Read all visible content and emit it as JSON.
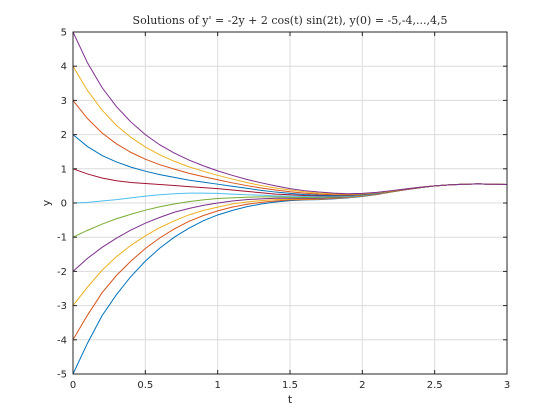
{
  "chart_data": {
    "type": "line",
    "title": "Solutions of y' = -2y + 2 cos(t) sin(2t), y(0) = -5,-4,...,4,5",
    "xlabel": "t",
    "ylabel": "y",
    "xlim": [
      0,
      3
    ],
    "ylim": [
      -5,
      5
    ],
    "xticks": [
      0,
      0.5,
      1,
      1.5,
      2,
      2.5,
      3
    ],
    "xtick_labels": [
      "0",
      "0.5",
      "1",
      "1.5",
      "2",
      "2.5",
      "3"
    ],
    "yticks": [
      -5,
      -4,
      -3,
      -2,
      -1,
      0,
      1,
      2,
      3,
      4,
      5
    ],
    "ytick_labels": [
      "-5",
      "-4",
      "-3",
      "-2",
      "-1",
      "0",
      "1",
      "2",
      "3",
      "4",
      "5"
    ],
    "grid": true,
    "x": [
      0,
      0.1,
      0.2,
      0.3,
      0.4,
      0.5,
      0.6,
      0.7,
      0.8,
      0.9,
      1.0,
      1.1,
      1.2,
      1.3,
      1.4,
      1.5,
      1.6,
      1.7,
      1.8,
      1.9,
      2.0,
      2.1,
      2.2,
      2.3,
      2.4,
      2.5,
      2.6,
      2.7,
      2.8,
      2.9,
      3.0
    ],
    "series": [
      {
        "initial": -5,
        "color": "#0072bd",
        "values": [
          -5,
          -4.1,
          -3.3,
          -2.68,
          -2.15,
          -1.7,
          -1.32,
          -1.0,
          -0.74,
          -0.52,
          -0.35,
          -0.22,
          -0.11,
          -0.03,
          0.03,
          0.07,
          0.09,
          0.1,
          0.12,
          0.15,
          0.19,
          0.25,
          0.32,
          0.39,
          0.45,
          0.5,
          0.53,
          0.55,
          0.56,
          0.55,
          0.54
        ]
      },
      {
        "initial": -4,
        "color": "#d95319",
        "values": [
          -4,
          -3.28,
          -2.63,
          -2.12,
          -1.7,
          -1.33,
          -1.02,
          -0.76,
          -0.54,
          -0.37,
          -0.23,
          -0.12,
          -0.04,
          0.02,
          0.06,
          0.09,
          0.1,
          0.11,
          0.13,
          0.16,
          0.2,
          0.25,
          0.32,
          0.39,
          0.45,
          0.5,
          0.53,
          0.55,
          0.56,
          0.55,
          0.54
        ]
      },
      {
        "initial": -3,
        "color": "#edb120",
        "values": [
          -3,
          -2.46,
          -1.97,
          -1.57,
          -1.24,
          -0.96,
          -0.72,
          -0.52,
          -0.35,
          -0.22,
          -0.12,
          -0.03,
          0.03,
          0.07,
          0.1,
          0.11,
          0.12,
          0.12,
          0.14,
          0.17,
          0.21,
          0.26,
          0.32,
          0.39,
          0.45,
          0.5,
          0.53,
          0.55,
          0.56,
          0.55,
          0.54
        ]
      },
      {
        "initial": -2,
        "color": "#7e2f8e",
        "values": [
          -2,
          -1.62,
          -1.3,
          -1.03,
          -0.79,
          -0.59,
          -0.42,
          -0.27,
          -0.16,
          -0.07,
          0.0,
          0.06,
          0.1,
          0.12,
          0.14,
          0.14,
          0.14,
          0.14,
          0.15,
          0.18,
          0.22,
          0.26,
          0.33,
          0.39,
          0.45,
          0.5,
          0.53,
          0.55,
          0.56,
          0.55,
          0.54
        ]
      },
      {
        "initial": -1,
        "color": "#77ac30",
        "values": [
          -1,
          -0.8,
          -0.62,
          -0.46,
          -0.33,
          -0.21,
          -0.11,
          -0.03,
          0.04,
          0.09,
          0.13,
          0.15,
          0.17,
          0.18,
          0.18,
          0.17,
          0.16,
          0.16,
          0.17,
          0.19,
          0.22,
          0.27,
          0.33,
          0.4,
          0.45,
          0.5,
          0.53,
          0.55,
          0.56,
          0.55,
          0.54
        ]
      },
      {
        "initial": 0,
        "color": "#4dbeee",
        "values": [
          0,
          0.02,
          0.06,
          0.1,
          0.15,
          0.2,
          0.24,
          0.27,
          0.29,
          0.29,
          0.28,
          0.26,
          0.24,
          0.23,
          0.21,
          0.2,
          0.19,
          0.18,
          0.19,
          0.2,
          0.23,
          0.28,
          0.34,
          0.4,
          0.45,
          0.5,
          0.53,
          0.55,
          0.56,
          0.55,
          0.54
        ]
      },
      {
        "initial": 1,
        "color": "#a2142f",
        "values": [
          1,
          0.85,
          0.73,
          0.65,
          0.6,
          0.57,
          0.54,
          0.51,
          0.48,
          0.45,
          0.42,
          0.38,
          0.34,
          0.3,
          0.26,
          0.24,
          0.22,
          0.21,
          0.21,
          0.22,
          0.24,
          0.29,
          0.34,
          0.4,
          0.45,
          0.5,
          0.53,
          0.55,
          0.56,
          0.55,
          0.54
        ]
      },
      {
        "initial": 2,
        "color": "#0072bd",
        "values": [
          2,
          1.65,
          1.39,
          1.2,
          1.05,
          0.93,
          0.83,
          0.75,
          0.67,
          0.61,
          0.55,
          0.49,
          0.43,
          0.37,
          0.32,
          0.28,
          0.25,
          0.23,
          0.22,
          0.23,
          0.25,
          0.29,
          0.35,
          0.41,
          0.46,
          0.5,
          0.53,
          0.55,
          0.56,
          0.55,
          0.54
        ]
      },
      {
        "initial": 3,
        "color": "#d95319",
        "values": [
          3,
          2.47,
          2.05,
          1.73,
          1.48,
          1.28,
          1.12,
          0.99,
          0.87,
          0.77,
          0.68,
          0.59,
          0.51,
          0.44,
          0.38,
          0.33,
          0.29,
          0.26,
          0.24,
          0.24,
          0.26,
          0.3,
          0.35,
          0.41,
          0.46,
          0.5,
          0.53,
          0.55,
          0.56,
          0.55,
          0.54
        ]
      },
      {
        "initial": 4,
        "color": "#edb120",
        "values": [
          4,
          3.29,
          2.72,
          2.27,
          1.92,
          1.64,
          1.41,
          1.22,
          1.06,
          0.93,
          0.81,
          0.7,
          0.6,
          0.51,
          0.44,
          0.38,
          0.33,
          0.29,
          0.27,
          0.26,
          0.27,
          0.3,
          0.35,
          0.41,
          0.46,
          0.5,
          0.53,
          0.55,
          0.56,
          0.55,
          0.54
        ]
      },
      {
        "initial": 5,
        "color": "#7e2f8e",
        "values": [
          5,
          4.1,
          3.38,
          2.82,
          2.37,
          2.0,
          1.7,
          1.46,
          1.26,
          1.09,
          0.94,
          0.81,
          0.69,
          0.59,
          0.5,
          0.42,
          0.36,
          0.32,
          0.29,
          0.27,
          0.28,
          0.31,
          0.36,
          0.41,
          0.46,
          0.5,
          0.53,
          0.55,
          0.56,
          0.55,
          0.54
        ]
      }
    ]
  }
}
